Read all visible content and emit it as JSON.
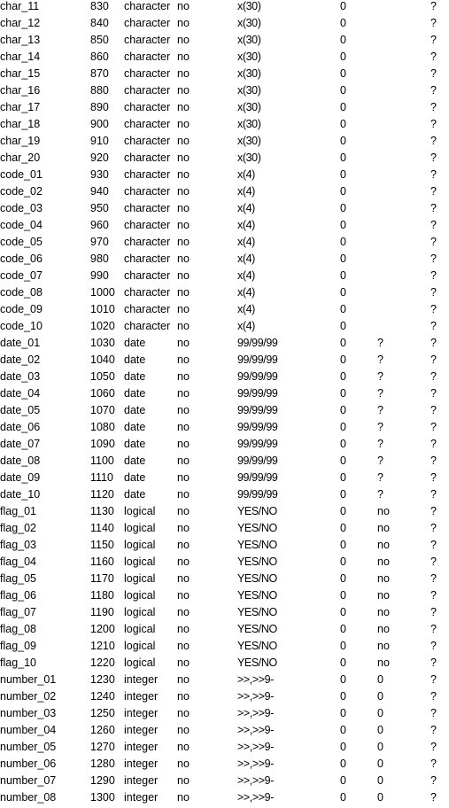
{
  "rows": [
    {
      "name": "char_11",
      "order": "830",
      "type": "character",
      "extent": "no",
      "format": "x(30)",
      "decimals": "0",
      "initial": "",
      "help": "?"
    },
    {
      "name": "char_12",
      "order": "840",
      "type": "character",
      "extent": "no",
      "format": "x(30)",
      "decimals": "0",
      "initial": "",
      "help": "?"
    },
    {
      "name": "char_13",
      "order": "850",
      "type": "character",
      "extent": "no",
      "format": "x(30)",
      "decimals": "0",
      "initial": "",
      "help": "?"
    },
    {
      "name": "char_14",
      "order": "860",
      "type": "character",
      "extent": "no",
      "format": "x(30)",
      "decimals": "0",
      "initial": "",
      "help": "?"
    },
    {
      "name": "char_15",
      "order": "870",
      "type": "character",
      "extent": "no",
      "format": "x(30)",
      "decimals": "0",
      "initial": "",
      "help": "?"
    },
    {
      "name": "char_16",
      "order": "880",
      "type": "character",
      "extent": "no",
      "format": "x(30)",
      "decimals": "0",
      "initial": "",
      "help": "?"
    },
    {
      "name": "char_17",
      "order": "890",
      "type": "character",
      "extent": "no",
      "format": "x(30)",
      "decimals": "0",
      "initial": "",
      "help": "?"
    },
    {
      "name": "char_18",
      "order": "900",
      "type": "character",
      "extent": "no",
      "format": "x(30)",
      "decimals": "0",
      "initial": "",
      "help": "?"
    },
    {
      "name": "char_19",
      "order": "910",
      "type": "character",
      "extent": "no",
      "format": "x(30)",
      "decimals": "0",
      "initial": "",
      "help": "?"
    },
    {
      "name": "char_20",
      "order": "920",
      "type": "character",
      "extent": "no",
      "format": "x(30)",
      "decimals": "0",
      "initial": "",
      "help": "?"
    },
    {
      "name": "code_01",
      "order": "930",
      "type": "character",
      "extent": "no",
      "format": "x(4)",
      "decimals": "0",
      "initial": "",
      "help": "?"
    },
    {
      "name": "code_02",
      "order": "940",
      "type": "character",
      "extent": "no",
      "format": "x(4)",
      "decimals": "0",
      "initial": "",
      "help": "?"
    },
    {
      "name": "code_03",
      "order": "950",
      "type": "character",
      "extent": "no",
      "format": "x(4)",
      "decimals": "0",
      "initial": "",
      "help": "?"
    },
    {
      "name": "code_04",
      "order": "960",
      "type": "character",
      "extent": "no",
      "format": "x(4)",
      "decimals": "0",
      "initial": "",
      "help": "?"
    },
    {
      "name": "code_05",
      "order": "970",
      "type": "character",
      "extent": "no",
      "format": "x(4)",
      "decimals": "0",
      "initial": "",
      "help": "?"
    },
    {
      "name": "code_06",
      "order": "980",
      "type": "character",
      "extent": "no",
      "format": "x(4)",
      "decimals": "0",
      "initial": "",
      "help": "?"
    },
    {
      "name": "code_07",
      "order": "990",
      "type": "character",
      "extent": "no",
      "format": "x(4)",
      "decimals": "0",
      "initial": "",
      "help": "?"
    },
    {
      "name": "code_08",
      "order": "1000",
      "type": "character",
      "extent": "no",
      "format": "x(4)",
      "decimals": "0",
      "initial": "",
      "help": "?"
    },
    {
      "name": "code_09",
      "order": "1010",
      "type": "character",
      "extent": "no",
      "format": "x(4)",
      "decimals": "0",
      "initial": "",
      "help": "?"
    },
    {
      "name": "code_10",
      "order": "1020",
      "type": "character",
      "extent": "no",
      "format": "x(4)",
      "decimals": "0",
      "initial": "",
      "help": "?"
    },
    {
      "name": "date_01",
      "order": "1030",
      "type": "date",
      "extent": "no",
      "format": "99/99/99",
      "decimals": "0",
      "initial": "?",
      "help": "?"
    },
    {
      "name": "date_02",
      "order": "1040",
      "type": "date",
      "extent": "no",
      "format": "99/99/99",
      "decimals": "0",
      "initial": "?",
      "help": "?"
    },
    {
      "name": "date_03",
      "order": "1050",
      "type": "date",
      "extent": "no",
      "format": "99/99/99",
      "decimals": "0",
      "initial": "?",
      "help": "?"
    },
    {
      "name": "date_04",
      "order": "1060",
      "type": "date",
      "extent": "no",
      "format": "99/99/99",
      "decimals": "0",
      "initial": "?",
      "help": "?"
    },
    {
      "name": "date_05",
      "order": "1070",
      "type": "date",
      "extent": "no",
      "format": "99/99/99",
      "decimals": "0",
      "initial": "?",
      "help": "?"
    },
    {
      "name": "date_06",
      "order": "1080",
      "type": "date",
      "extent": "no",
      "format": "99/99/99",
      "decimals": "0",
      "initial": "?",
      "help": "?"
    },
    {
      "name": "date_07",
      "order": "1090",
      "type": "date",
      "extent": "no",
      "format": "99/99/99",
      "decimals": "0",
      "initial": "?",
      "help": "?"
    },
    {
      "name": "date_08",
      "order": "1100",
      "type": "date",
      "extent": "no",
      "format": "99/99/99",
      "decimals": "0",
      "initial": "?",
      "help": "?"
    },
    {
      "name": "date_09",
      "order": "1110",
      "type": "date",
      "extent": "no",
      "format": "99/99/99",
      "decimals": "0",
      "initial": "?",
      "help": "?"
    },
    {
      "name": "date_10",
      "order": "1120",
      "type": "date",
      "extent": "no",
      "format": "99/99/99",
      "decimals": "0",
      "initial": "?",
      "help": "?"
    },
    {
      "name": "flag_01",
      "order": "1130",
      "type": "logical",
      "extent": "no",
      "format": "YES/NO",
      "decimals": "0",
      "initial": "no",
      "help": "?"
    },
    {
      "name": "flag_02",
      "order": "1140",
      "type": "logical",
      "extent": "no",
      "format": "YES/NO",
      "decimals": "0",
      "initial": "no",
      "help": "?"
    },
    {
      "name": "flag_03",
      "order": "1150",
      "type": "logical",
      "extent": "no",
      "format": "YES/NO",
      "decimals": "0",
      "initial": "no",
      "help": "?"
    },
    {
      "name": "flag_04",
      "order": "1160",
      "type": "logical",
      "extent": "no",
      "format": "YES/NO",
      "decimals": "0",
      "initial": "no",
      "help": "?"
    },
    {
      "name": "flag_05",
      "order": "1170",
      "type": "logical",
      "extent": "no",
      "format": "YES/NO",
      "decimals": "0",
      "initial": "no",
      "help": "?"
    },
    {
      "name": "flag_06",
      "order": "1180",
      "type": "logical",
      "extent": "no",
      "format": "YES/NO",
      "decimals": "0",
      "initial": "no",
      "help": "?"
    },
    {
      "name": "flag_07",
      "order": "1190",
      "type": "logical",
      "extent": "no",
      "format": "YES/NO",
      "decimals": "0",
      "initial": "no",
      "help": "?"
    },
    {
      "name": "flag_08",
      "order": "1200",
      "type": "logical",
      "extent": "no",
      "format": "YES/NO",
      "decimals": "0",
      "initial": "no",
      "help": "?"
    },
    {
      "name": "flag_09",
      "order": "1210",
      "type": "logical",
      "extent": "no",
      "format": "YES/NO",
      "decimals": "0",
      "initial": "no",
      "help": "?"
    },
    {
      "name": "flag_10",
      "order": "1220",
      "type": "logical",
      "extent": "no",
      "format": "YES/NO",
      "decimals": "0",
      "initial": "no",
      "help": "?"
    },
    {
      "name": "number_01",
      "order": "1230",
      "type": "integer",
      "extent": "no",
      "format": ">>,>>9-",
      "decimals": "0",
      "initial": "0",
      "help": "?"
    },
    {
      "name": "number_02",
      "order": "1240",
      "type": "integer",
      "extent": "no",
      "format": ">>,>>9-",
      "decimals": "0",
      "initial": "0",
      "help": "?"
    },
    {
      "name": "number_03",
      "order": "1250",
      "type": "integer",
      "extent": "no",
      "format": ">>,>>9-",
      "decimals": "0",
      "initial": "0",
      "help": "?"
    },
    {
      "name": "number_04",
      "order": "1260",
      "type": "integer",
      "extent": "no",
      "format": ">>,>>9-",
      "decimals": "0",
      "initial": "0",
      "help": "?"
    },
    {
      "name": "number_05",
      "order": "1270",
      "type": "integer",
      "extent": "no",
      "format": ">>,>>9-",
      "decimals": "0",
      "initial": "0",
      "help": "?"
    },
    {
      "name": "number_06",
      "order": "1280",
      "type": "integer",
      "extent": "no",
      "format": ">>,>>9-",
      "decimals": "0",
      "initial": "0",
      "help": "?"
    },
    {
      "name": "number_07",
      "order": "1290",
      "type": "integer",
      "extent": "no",
      "format": ">>,>>9-",
      "decimals": "0",
      "initial": "0",
      "help": "?"
    },
    {
      "name": "number_08",
      "order": "1300",
      "type": "integer",
      "extent": "no",
      "format": ">>,>>9-",
      "decimals": "0",
      "initial": "0",
      "help": "?"
    }
  ]
}
